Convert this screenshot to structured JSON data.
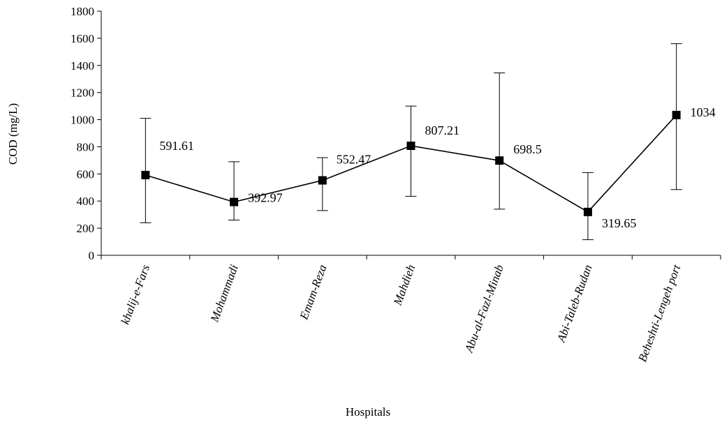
{
  "chart_data": {
    "type": "line",
    "xlabel": "Hospitals",
    "ylabel": "COD (mg/L)",
    "ylim": [
      0,
      1800
    ],
    "yticks": [
      0,
      200,
      400,
      600,
      800,
      1000,
      1200,
      1400,
      1600,
      1800
    ],
    "grid": false,
    "categories": [
      "khalij-e-Fars",
      "Mohammadi",
      "Emam-Reza",
      "Mahdieh",
      "Abu-al-Fazl-Minab",
      "Abi-Taleb-Rudan",
      "Beheshti-Lengeh port"
    ],
    "series": [
      {
        "values": [
          591.61,
          392.97,
          552.47,
          807.21,
          698.5,
          319.65,
          1034
        ],
        "labels": [
          "591.61",
          "392.97",
          "552.47",
          "807.21",
          "698.5",
          "319.65",
          "1034"
        ],
        "error_low": [
          240,
          260,
          330,
          435,
          340,
          115,
          485
        ],
        "error_high": [
          1010,
          690,
          720,
          1100,
          1345,
          610,
          1560
        ],
        "marker": "square",
        "color": "#000000"
      }
    ]
  }
}
